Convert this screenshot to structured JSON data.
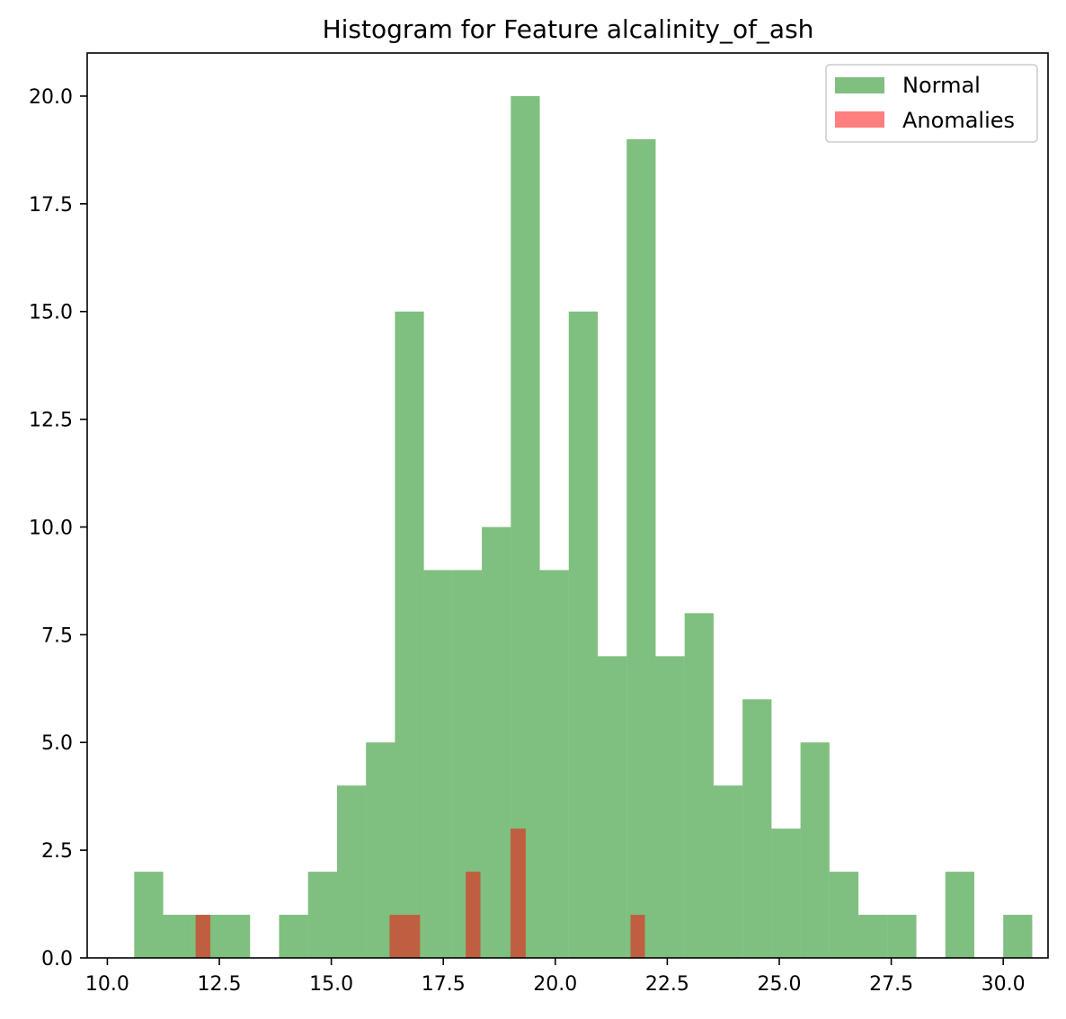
{
  "chart_data": {
    "type": "bar",
    "title": "Histogram for Feature alcalinity_of_ash",
    "xlabel": "",
    "ylabel": "",
    "xlim": [
      9.55,
      31.0
    ],
    "ylim": [
      0,
      21
    ],
    "x_ticks": [
      "10.0",
      "12.5",
      "15.0",
      "17.5",
      "20.0",
      "22.5",
      "25.0",
      "27.5",
      "30.0"
    ],
    "x_tick_values": [
      10.0,
      12.5,
      15.0,
      17.5,
      20.0,
      22.5,
      25.0,
      27.5,
      30.0
    ],
    "y_ticks": [
      "0.0",
      "2.5",
      "5.0",
      "7.5",
      "10.0",
      "12.5",
      "15.0",
      "17.5",
      "20.0"
    ],
    "y_tick_values": [
      0,
      2.5,
      5,
      7.5,
      10,
      12.5,
      15,
      17.5,
      20
    ],
    "legend": {
      "position": "top-right",
      "entries": [
        "Normal",
        "Anomalies"
      ]
    },
    "series": [
      {
        "name": "Normal",
        "color": "#008000",
        "opacity": 0.5,
        "bin_start": 10.6,
        "bin_width": 0.6467,
        "counts": [
          2,
          1,
          1,
          1,
          0,
          1,
          2,
          4,
          5,
          15,
          9,
          9,
          10,
          20,
          9,
          15,
          7,
          19,
          7,
          8,
          4,
          6,
          3,
          5,
          2,
          1,
          1,
          0,
          2,
          0,
          1
        ]
      },
      {
        "name": "Anomalies",
        "color": "#ff0000",
        "opacity": 0.5,
        "bins": [
          {
            "x0": 11.97,
            "x1": 12.3,
            "count": 1
          },
          {
            "x0": 16.3,
            "x1": 16.98,
            "count": 1
          },
          {
            "x0": 18.0,
            "x1": 18.33,
            "count": 2
          },
          {
            "x0": 19.0,
            "x1": 19.34,
            "count": 3
          },
          {
            "x0": 21.68,
            "x1": 22.0,
            "count": 1
          }
        ]
      }
    ]
  }
}
